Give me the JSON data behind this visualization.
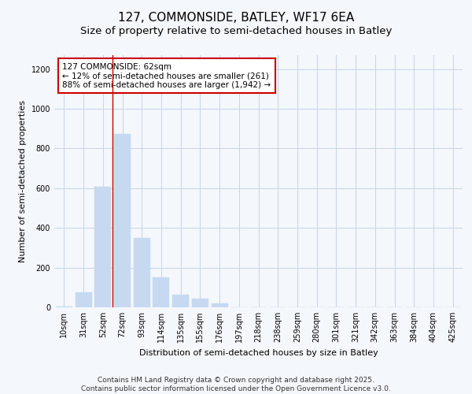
{
  "title": "127, COMMONSIDE, BATLEY, WF17 6EA",
  "subtitle": "Size of property relative to semi-detached houses in Batley",
  "xlabel": "Distribution of semi-detached houses by size in Batley",
  "ylabel": "Number of semi-detached properties",
  "categories": [
    "10sqm",
    "31sqm",
    "52sqm",
    "72sqm",
    "93sqm",
    "114sqm",
    "135sqm",
    "155sqm",
    "176sqm",
    "197sqm",
    "218sqm",
    "238sqm",
    "259sqm",
    "280sqm",
    "301sqm",
    "321sqm",
    "342sqm",
    "363sqm",
    "384sqm",
    "404sqm",
    "425sqm"
  ],
  "values": [
    5,
    75,
    608,
    875,
    348,
    150,
    62,
    45,
    18,
    0,
    0,
    0,
    0,
    0,
    0,
    0,
    0,
    0,
    0,
    0,
    0
  ],
  "bar_color": "#c6d9f1",
  "bar_edge_color": "#c6d9f1",
  "vline_x": 2.5,
  "vline_color": "#cc0000",
  "annotation_text": "127 COMMONSIDE: 62sqm\n← 12% of semi-detached houses are smaller (261)\n88% of semi-detached houses are larger (1,942) →",
  "annotation_box_color": "#cc0000",
  "ylim": [
    0,
    1270
  ],
  "yticks": [
    0,
    200,
    400,
    600,
    800,
    1000,
    1200
  ],
  "footer": "Contains HM Land Registry data © Crown copyright and database right 2025.\nContains public sector information licensed under the Open Government Licence v3.0.",
  "bg_color": "#f4f7fb",
  "plot_bg_color": "#f4f7fb",
  "grid_color": "#c8d4e8",
  "title_fontsize": 11,
  "subtitle_fontsize": 9.5,
  "axis_fontsize": 8,
  "tick_fontsize": 7,
  "footer_fontsize": 6.5,
  "annot_fontsize": 7.5
}
